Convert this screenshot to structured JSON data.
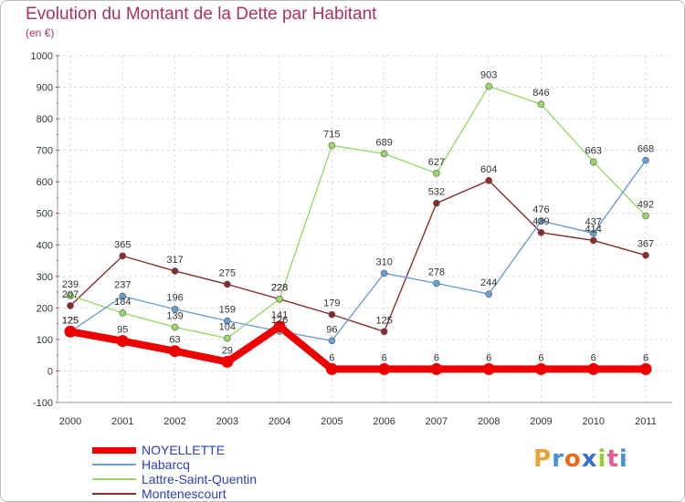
{
  "title": "Evolution du Montant de la Dette par Habitant",
  "subtitle": "(en €)",
  "logo": {
    "text": "Proxiti",
    "letters": [
      "P",
      "r",
      "o",
      "x",
      "i",
      "t",
      "i"
    ],
    "colors": [
      "#e8a33a",
      "#4b8fd6",
      "#e86b1f",
      "#3a6fd0",
      "#9acd32",
      "#e85a8c",
      "#4b8fd6"
    ]
  },
  "chart_data": {
    "type": "line",
    "title": "Evolution du Montant de la Dette par Habitant",
    "ylabel": "(en €)",
    "x": [
      "2000",
      "2001",
      "2002",
      "2003",
      "2004",
      "2005",
      "2006",
      "2007",
      "2008",
      "2009",
      "2010",
      "2011"
    ],
    "ylim": [
      -100,
      1000
    ],
    "yticks": [
      "-100",
      "0",
      "100",
      "200",
      "300",
      "400",
      "500",
      "600",
      "700",
      "800",
      "900",
      "1000"
    ],
    "grid": true,
    "legend_position": "bottom-left",
    "series": [
      {
        "name": "NOYELLETTE",
        "color": "#ee0000",
        "values": [
          125,
          95,
          63,
          29,
          141,
          6,
          6,
          6,
          6,
          6,
          6,
          6
        ],
        "labels": [
          "125",
          "95",
          "63",
          "29",
          "141",
          "6",
          "6",
          "6",
          "6",
          "6",
          "6",
          "6"
        ]
      },
      {
        "name": "Habarcq",
        "color": "#6a9fd4",
        "values": [
          125,
          237,
          196,
          159,
          126,
          96,
          310,
          278,
          244,
          476,
          437,
          668
        ],
        "labels": [
          "125",
          "237",
          "196",
          "159",
          "126",
          "96",
          "310",
          "278",
          "244",
          "476",
          "437",
          "668"
        ]
      },
      {
        "name": "Lattre-Saint-Quentin",
        "color": "#9ad86a",
        "values": [
          239,
          184,
          139,
          104,
          228,
          715,
          689,
          627,
          903,
          846,
          663,
          492
        ],
        "labels": [
          "239",
          "184",
          "139",
          "104",
          "228",
          "715",
          "689",
          "627",
          "903",
          "846",
          "663",
          "492"
        ]
      },
      {
        "name": "Montenescourt",
        "color": "#8a2c2c",
        "values": [
          207,
          365,
          317,
          275,
          228,
          179,
          125,
          532,
          604,
          439,
          414,
          367
        ],
        "labels": [
          "207",
          "365",
          "317",
          "275",
          "228",
          "179",
          "125",
          "532",
          "604",
          "439",
          "414",
          "367"
        ]
      }
    ]
  }
}
